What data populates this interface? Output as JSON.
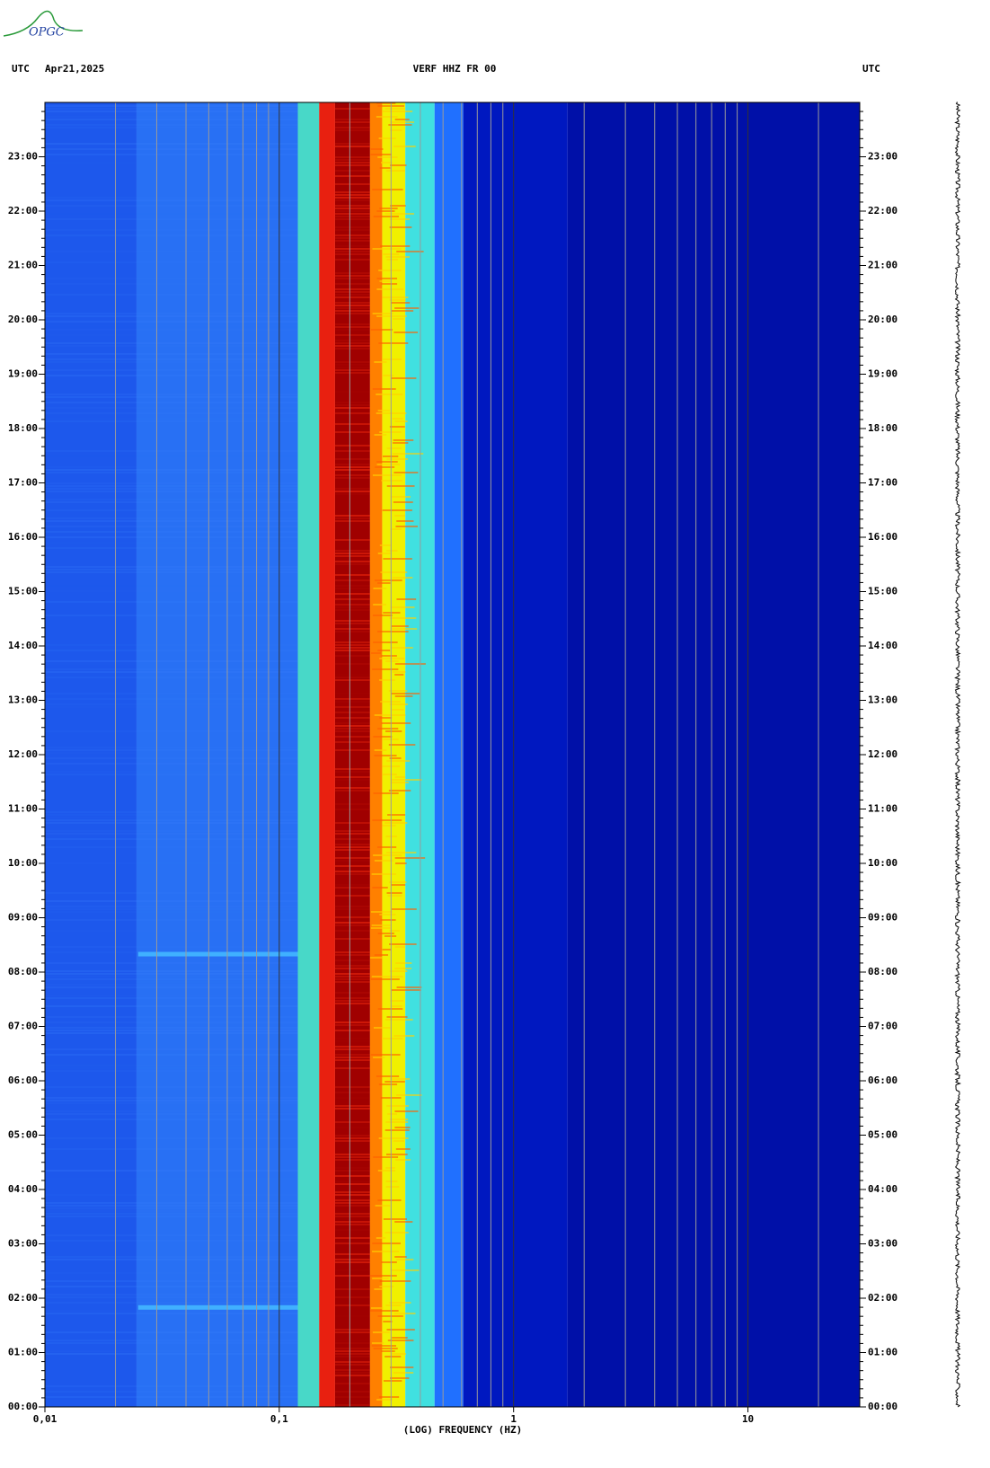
{
  "chart_data": {
    "type": "spectrogram",
    "logo": "OPGC",
    "header_left": "UTC",
    "date": "Apr21,2025",
    "title": "VERF HHZ FR 00",
    "header_right": "UTC",
    "x_label": "(LOG) FREQUENCY (HZ)",
    "xscale": "log",
    "xlim": [
      0.01,
      30
    ],
    "xticks": [
      {
        "value": 0.01,
        "label": "0,01"
      },
      {
        "value": 0.1,
        "label": "0,1"
      },
      1,
      10
    ],
    "xminor": [
      0.02,
      0.03,
      0.04,
      0.05,
      0.06,
      0.07,
      0.08,
      0.09,
      0.2,
      0.3,
      0.4,
      0.5,
      0.6,
      0.7,
      0.8,
      0.9,
      2,
      3,
      4,
      5,
      6,
      7,
      8,
      9,
      20
    ],
    "ylim": [
      0,
      24
    ],
    "yticks": [
      {
        "value": 0,
        "label": "00:00"
      },
      {
        "value": 1,
        "label": "01:00"
      },
      {
        "value": 2,
        "label": "02:00"
      },
      {
        "value": 3,
        "label": "03:00"
      },
      {
        "value": 4,
        "label": "04:00"
      },
      {
        "value": 5,
        "label": "05:00"
      },
      {
        "value": 6,
        "label": "06:00"
      },
      {
        "value": 7,
        "label": "07:00"
      },
      {
        "value": 8,
        "label": "08:00"
      },
      {
        "value": 9,
        "label": "09:00"
      },
      {
        "value": 10,
        "label": "10:00"
      },
      {
        "value": 11,
        "label": "11:00"
      },
      {
        "value": 12,
        "label": "12:00"
      },
      {
        "value": 13,
        "label": "13:00"
      },
      {
        "value": 14,
        "label": "14:00"
      },
      {
        "value": 15,
        "label": "15:00"
      },
      {
        "value": 16,
        "label": "16:00"
      },
      {
        "value": 17,
        "label": "17:00"
      },
      {
        "value": 18,
        "label": "18:00"
      },
      {
        "value": 19,
        "label": "19:00"
      },
      {
        "value": 20,
        "label": "20:00"
      },
      {
        "value": 21,
        "label": "21:00"
      },
      {
        "value": 22,
        "label": "22:00"
      },
      {
        "value": 23,
        "label": "23:00"
      }
    ],
    "bands": [
      {
        "from": 0.01,
        "to": 0.0246,
        "color": "#1d58ec"
      },
      {
        "from": 0.0246,
        "to": 0.12,
        "color": "#2870f4"
      },
      {
        "from": 0.12,
        "to": 0.148,
        "color": "#48d8c8"
      },
      {
        "from": 0.148,
        "to": 0.173,
        "color": "#e82010"
      },
      {
        "from": 0.173,
        "to": 0.244,
        "color": "#a00000"
      },
      {
        "from": 0.244,
        "to": 0.275,
        "color": "#ff8000"
      },
      {
        "from": 0.275,
        "to": 0.345,
        "color": "#f0f000"
      },
      {
        "from": 0.345,
        "to": 0.46,
        "color": "#40e0e0"
      },
      {
        "from": 0.46,
        "to": 0.61,
        "color": "#2070ff"
      },
      {
        "from": 0.61,
        "to": 1.7,
        "color": "#0018c0"
      },
      {
        "from": 1.7,
        "to": 30,
        "color": "#0010a8"
      }
    ],
    "events": [
      {
        "y": 8.33,
        "from": 0.025,
        "to": 0.12,
        "color": "#40b0ff"
      },
      {
        "y": 1.83,
        "from": 0.025,
        "to": 0.12,
        "color": "#40b0ff"
      }
    ]
  }
}
